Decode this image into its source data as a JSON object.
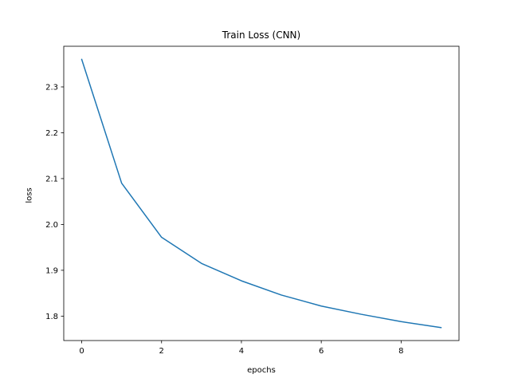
{
  "chart_data": {
    "type": "line",
    "title": "Train Loss (CNN)",
    "xlabel": "epochs",
    "ylabel": "loss",
    "xlim": [
      -0.45,
      9.45
    ],
    "ylim": [
      1.7467,
      2.3887
    ],
    "xticks": [
      0,
      2,
      4,
      6,
      8
    ],
    "xtick_labels": [
      "0",
      "2",
      "4",
      "6",
      "8"
    ],
    "yticks": [
      1.8,
      1.9,
      2.0,
      2.1,
      2.2,
      2.3
    ],
    "ytick_labels": [
      "1.8",
      "1.9",
      "2.0",
      "2.1",
      "2.2",
      "2.3"
    ],
    "grid": false,
    "series": [
      {
        "color": "#1f77b4",
        "x": [
          0,
          1,
          2,
          3,
          4,
          5,
          6,
          7,
          8,
          9
        ],
        "values": [
          2.36,
          2.09,
          1.972,
          1.915,
          1.877,
          1.846,
          1.822,
          1.804,
          1.788,
          1.775
        ]
      }
    ]
  }
}
